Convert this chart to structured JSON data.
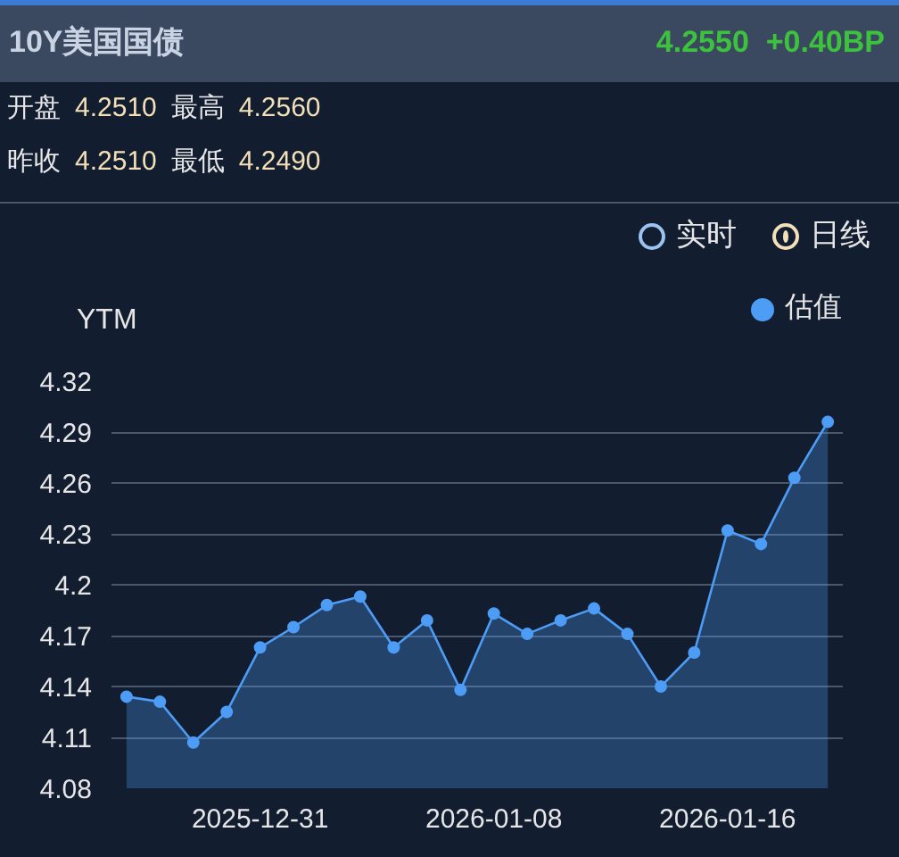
{
  "chart_data": {
    "type": "area",
    "title": "10Y美国国债",
    "subtitle": "4.2550  +0.40BP",
    "annotations": [
      "开盘",
      "4.2510",
      "最高",
      "4.2560",
      "昨收",
      "4.2510",
      "最低",
      "4.2490",
      "实时",
      "日线"
    ],
    "ylabel": "YTM",
    "categories": [
      null,
      null,
      null,
      null,
      "2025-12-31",
      null,
      null,
      null,
      null,
      null,
      null,
      "2026-01-08",
      null,
      null,
      null,
      null,
      null,
      null,
      "2026-01-16",
      null,
      null,
      null
    ],
    "series": [
      {
        "name": "估值",
        "color": "#4d9cf5",
        "values": [
          4.134,
          4.131,
          4.107,
          4.125,
          4.163,
          4.175,
          4.188,
          4.193,
          4.163,
          4.179,
          4.138,
          4.183,
          4.171,
          4.179,
          4.186,
          4.171,
          4.14,
          4.16,
          4.232,
          4.224,
          4.263,
          4.296
        ]
      }
    ],
    "ylim": [
      4.08,
      4.32
    ],
    "yticks": [
      4.08,
      4.11,
      4.14,
      4.17,
      4.2,
      4.23,
      4.26,
      4.29,
      4.32
    ],
    "grid": "y",
    "legend": "top right",
    "marker": "circle",
    "line_style": "solid"
  }
}
